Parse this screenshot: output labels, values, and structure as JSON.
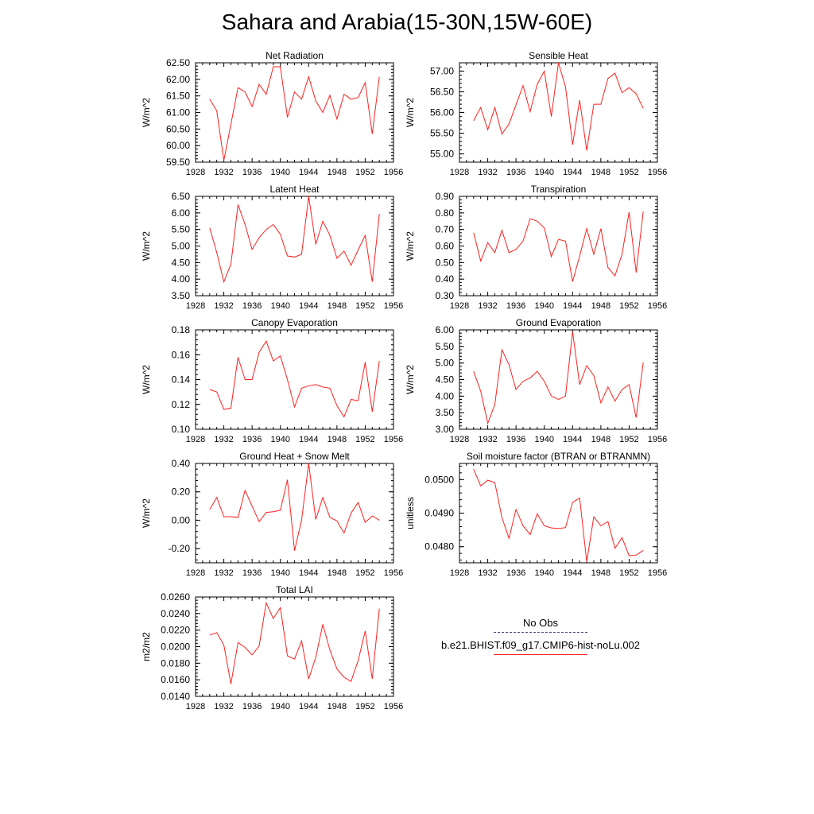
{
  "title": "Sahara and Arabia(15-30N,15W-60E)",
  "legend": {
    "obs_label": "No Obs",
    "model_label": "b.e21.BHIST.f09_g17.CMIP6-hist-noLu.002",
    "obs_color": "#4a4a8a",
    "model_color": "#ff2020"
  },
  "chart_data": [
    {
      "type": "line",
      "title": "Net Radiation",
      "ylabel": "W/m^2",
      "xlim": [
        1928,
        1956
      ],
      "ylim": [
        59.5,
        62.5
      ],
      "xticks": [
        1928,
        1932,
        1936,
        1940,
        1944,
        1948,
        1952,
        1956
      ],
      "yticks": [
        59.5,
        60.0,
        60.5,
        61.0,
        61.5,
        62.0,
        62.5
      ],
      "yticklabels": [
        "59.50",
        "60.00",
        "60.50",
        "61.00",
        "61.50",
        "62.00",
        "62.50"
      ],
      "x": [
        1930,
        1931,
        1932,
        1933,
        1934,
        1935,
        1936,
        1937,
        1938,
        1939,
        1940,
        1941,
        1942,
        1943,
        1944,
        1945,
        1946,
        1947,
        1948,
        1949,
        1950,
        1951,
        1952,
        1953,
        1954
      ],
      "series": [
        {
          "values": [
            61.4,
            61.05,
            59.55,
            60.65,
            61.75,
            61.62,
            61.18,
            61.85,
            61.55,
            62.38,
            62.38,
            60.85,
            61.62,
            61.4,
            62.08,
            61.35,
            61.0,
            61.52,
            60.8,
            61.55,
            61.4,
            61.45,
            61.9,
            60.35,
            62.08
          ]
        }
      ]
    },
    {
      "type": "line",
      "title": "Sensible Heat",
      "ylabel": "W/m^2",
      "xlim": [
        1928,
        1956
      ],
      "ylim": [
        54.8,
        57.2
      ],
      "xticks": [
        1928,
        1932,
        1936,
        1940,
        1944,
        1948,
        1952,
        1956
      ],
      "yticks": [
        55.0,
        55.5,
        56.0,
        56.5,
        57.0
      ],
      "yticklabels": [
        "55.00",
        "55.50",
        "56.00",
        "56.50",
        "57.00"
      ],
      "x": [
        1930,
        1931,
        1932,
        1933,
        1934,
        1935,
        1936,
        1937,
        1938,
        1939,
        1940,
        1941,
        1942,
        1943,
        1944,
        1945,
        1946,
        1947,
        1948,
        1949,
        1950,
        1951,
        1952,
        1953,
        1954
      ],
      "series": [
        {
          "values": [
            55.8,
            56.12,
            55.58,
            56.12,
            55.48,
            55.72,
            56.18,
            56.65,
            56.02,
            56.68,
            57.0,
            55.9,
            57.2,
            56.62,
            55.22,
            56.3,
            55.08,
            56.2,
            56.2,
            56.82,
            56.95,
            56.48,
            56.6,
            56.45,
            56.1
          ]
        }
      ]
    },
    {
      "type": "line",
      "title": "Latent Heat",
      "ylabel": "W/m^2",
      "xlim": [
        1928,
        1956
      ],
      "ylim": [
        3.5,
        6.5
      ],
      "xticks": [
        1928,
        1932,
        1936,
        1940,
        1944,
        1948,
        1952,
        1956
      ],
      "yticks": [
        3.5,
        4.0,
        4.5,
        5.0,
        5.5,
        6.0,
        6.5
      ],
      "yticklabels": [
        "3.50",
        "4.00",
        "4.50",
        "5.00",
        "5.50",
        "6.00",
        "6.50"
      ],
      "x": [
        1930,
        1931,
        1932,
        1933,
        1934,
        1935,
        1936,
        1937,
        1938,
        1939,
        1940,
        1941,
        1942,
        1943,
        1944,
        1945,
        1946,
        1947,
        1948,
        1949,
        1950,
        1951,
        1952,
        1953,
        1954
      ],
      "series": [
        {
          "values": [
            5.55,
            4.8,
            3.92,
            4.45,
            6.25,
            5.65,
            4.9,
            5.25,
            5.5,
            5.65,
            5.35,
            4.7,
            4.67,
            4.75,
            6.5,
            5.05,
            5.75,
            5.32,
            4.63,
            4.85,
            4.42,
            4.88,
            5.32,
            3.92,
            5.97
          ]
        }
      ]
    },
    {
      "type": "line",
      "title": "Transpiration",
      "ylabel": "W/m^2",
      "xlim": [
        1928,
        1956
      ],
      "ylim": [
        0.3,
        0.9
      ],
      "xticks": [
        1928,
        1932,
        1936,
        1940,
        1944,
        1948,
        1952,
        1956
      ],
      "yticks": [
        0.3,
        0.4,
        0.5,
        0.6,
        0.7,
        0.8,
        0.9
      ],
      "yticklabels": [
        "0.30",
        "0.40",
        "0.50",
        "0.60",
        "0.70",
        "0.80",
        "0.90"
      ],
      "x": [
        1930,
        1931,
        1932,
        1933,
        1934,
        1935,
        1936,
        1937,
        1938,
        1939,
        1940,
        1941,
        1942,
        1943,
        1944,
        1945,
        1946,
        1947,
        1948,
        1949,
        1950,
        1951,
        1952,
        1953,
        1954
      ],
      "series": [
        {
          "values": [
            0.68,
            0.51,
            0.62,
            0.56,
            0.695,
            0.56,
            0.58,
            0.63,
            0.765,
            0.75,
            0.71,
            0.535,
            0.64,
            0.63,
            0.385,
            0.54,
            0.705,
            0.55,
            0.705,
            0.47,
            0.42,
            0.55,
            0.805,
            0.44,
            0.81
          ]
        }
      ]
    },
    {
      "type": "line",
      "title": "Canopy Evaporation",
      "ylabel": "W/m^2",
      "xlim": [
        1928,
        1956
      ],
      "ylim": [
        0.1,
        0.18
      ],
      "xticks": [
        1928,
        1932,
        1936,
        1940,
        1944,
        1948,
        1952,
        1956
      ],
      "yticks": [
        0.1,
        0.12,
        0.14,
        0.16,
        0.18
      ],
      "yticklabels": [
        "0.10",
        "0.12",
        "0.14",
        "0.16",
        "0.18"
      ],
      "x": [
        1930,
        1931,
        1932,
        1933,
        1934,
        1935,
        1936,
        1937,
        1938,
        1939,
        1940,
        1941,
        1942,
        1943,
        1944,
        1945,
        1946,
        1947,
        1948,
        1949,
        1950,
        1951,
        1952,
        1953,
        1954
      ],
      "series": [
        {
          "values": [
            0.132,
            0.13,
            0.116,
            0.117,
            0.158,
            0.14,
            0.14,
            0.162,
            0.171,
            0.155,
            0.159,
            0.14,
            0.118,
            0.133,
            0.135,
            0.136,
            0.134,
            0.133,
            0.119,
            0.11,
            0.124,
            0.123,
            0.154,
            0.114,
            0.155
          ]
        }
      ]
    },
    {
      "type": "line",
      "title": "Ground Evaporation",
      "ylabel": "W/m^2",
      "xlim": [
        1928,
        1956
      ],
      "ylim": [
        3.0,
        6.0
      ],
      "xticks": [
        1928,
        1932,
        1936,
        1940,
        1944,
        1948,
        1952,
        1956
      ],
      "yticks": [
        3.0,
        3.5,
        4.0,
        4.5,
        5.0,
        5.5,
        6.0
      ],
      "yticklabels": [
        "3.00",
        "3.50",
        "4.00",
        "4.50",
        "5.00",
        "5.50",
        "6.00"
      ],
      "x": [
        1930,
        1931,
        1932,
        1933,
        1934,
        1935,
        1936,
        1937,
        1938,
        1939,
        1940,
        1941,
        1942,
        1943,
        1944,
        1945,
        1946,
        1947,
        1948,
        1949,
        1950,
        1951,
        1952,
        1953,
        1954
      ],
      "series": [
        {
          "values": [
            4.75,
            4.15,
            3.18,
            3.75,
            5.4,
            4.95,
            4.2,
            4.45,
            4.55,
            4.75,
            4.45,
            4.0,
            3.9,
            4.0,
            5.95,
            4.35,
            4.92,
            4.62,
            3.8,
            4.28,
            3.85,
            4.2,
            4.35,
            3.35,
            5.02
          ]
        }
      ]
    },
    {
      "type": "line",
      "title": "Ground Heat + Snow Melt",
      "ylabel": "W/m^2",
      "xlim": [
        1928,
        1956
      ],
      "ylim": [
        -0.3,
        0.4
      ],
      "xticks": [
        1928,
        1932,
        1936,
        1940,
        1944,
        1948,
        1952,
        1956
      ],
      "yticks": [
        -0.2,
        0.0,
        0.2,
        0.4
      ],
      "yticklabels": [
        "-0.20",
        "0.00",
        "0.20",
        "0.40"
      ],
      "x": [
        1930,
        1931,
        1932,
        1933,
        1934,
        1935,
        1936,
        1937,
        1938,
        1939,
        1940,
        1941,
        1942,
        1943,
        1944,
        1945,
        1946,
        1947,
        1948,
        1949,
        1950,
        1951,
        1952,
        1953,
        1954
      ],
      "series": [
        {
          "values": [
            0.075,
            0.16,
            0.025,
            0.025,
            0.02,
            0.21,
            0.1,
            -0.01,
            0.055,
            0.06,
            0.07,
            0.285,
            -0.215,
            0.0,
            0.4,
            0.005,
            0.16,
            0.02,
            -0.005,
            -0.09,
            0.05,
            0.125,
            -0.015,
            0.03,
            0.0
          ]
        }
      ]
    },
    {
      "type": "line",
      "title": "Soil moisture factor (BTRAN or BTRANMN)",
      "ylabel": "unitless",
      "xlim": [
        1928,
        1956
      ],
      "ylim": [
        0.04752,
        0.05048
      ],
      "xticks": [
        1928,
        1932,
        1936,
        1940,
        1944,
        1948,
        1952,
        1956
      ],
      "yticks": [
        0.048,
        0.049,
        0.05
      ],
      "yticklabels": [
        "0.0480",
        "0.0490",
        "0.0500"
      ],
      "x": [
        1930,
        1931,
        1932,
        1933,
        1934,
        1935,
        1936,
        1937,
        1938,
        1939,
        1940,
        1941,
        1942,
        1943,
        1944,
        1945,
        1946,
        1947,
        1948,
        1949,
        1950,
        1951,
        1952,
        1953,
        1954
      ],
      "series": [
        {
          "values": [
            0.05031,
            0.04981,
            0.04998,
            0.04991,
            0.04887,
            0.04825,
            0.04911,
            0.04862,
            0.04836,
            0.04898,
            0.04862,
            0.04856,
            0.04854,
            0.04857,
            0.04932,
            0.04945,
            0.04755,
            0.04889,
            0.04862,
            0.04875,
            0.04795,
            0.04827,
            0.04773,
            0.04775,
            0.04789
          ]
        }
      ]
    },
    {
      "type": "line",
      "title": "Total LAI",
      "ylabel": "m2/m2",
      "xlim": [
        1928,
        1956
      ],
      "ylim": [
        0.014,
        0.026
      ],
      "xticks": [
        1928,
        1932,
        1936,
        1940,
        1944,
        1948,
        1952,
        1956
      ],
      "yticks": [
        0.014,
        0.016,
        0.018,
        0.02,
        0.022,
        0.024,
        0.026
      ],
      "yticklabels": [
        "0.0140",
        "0.0160",
        "0.0180",
        "0.0200",
        "0.0220",
        "0.0240",
        "0.0260"
      ],
      "x": [
        1930,
        1931,
        1932,
        1933,
        1934,
        1935,
        1936,
        1937,
        1938,
        1939,
        1940,
        1941,
        1942,
        1943,
        1944,
        1945,
        1946,
        1947,
        1948,
        1949,
        1950,
        1951,
        1952,
        1953,
        1954
      ],
      "series": [
        {
          "values": [
            0.0214,
            0.0217,
            0.0202,
            0.0155,
            0.0205,
            0.0199,
            0.019,
            0.0201,
            0.0253,
            0.0234,
            0.0247,
            0.0189,
            0.0185,
            0.0207,
            0.0161,
            0.0187,
            0.0227,
            0.0196,
            0.0173,
            0.0163,
            0.0158,
            0.0183,
            0.0219,
            0.0161,
            0.0246
          ]
        }
      ]
    }
  ]
}
